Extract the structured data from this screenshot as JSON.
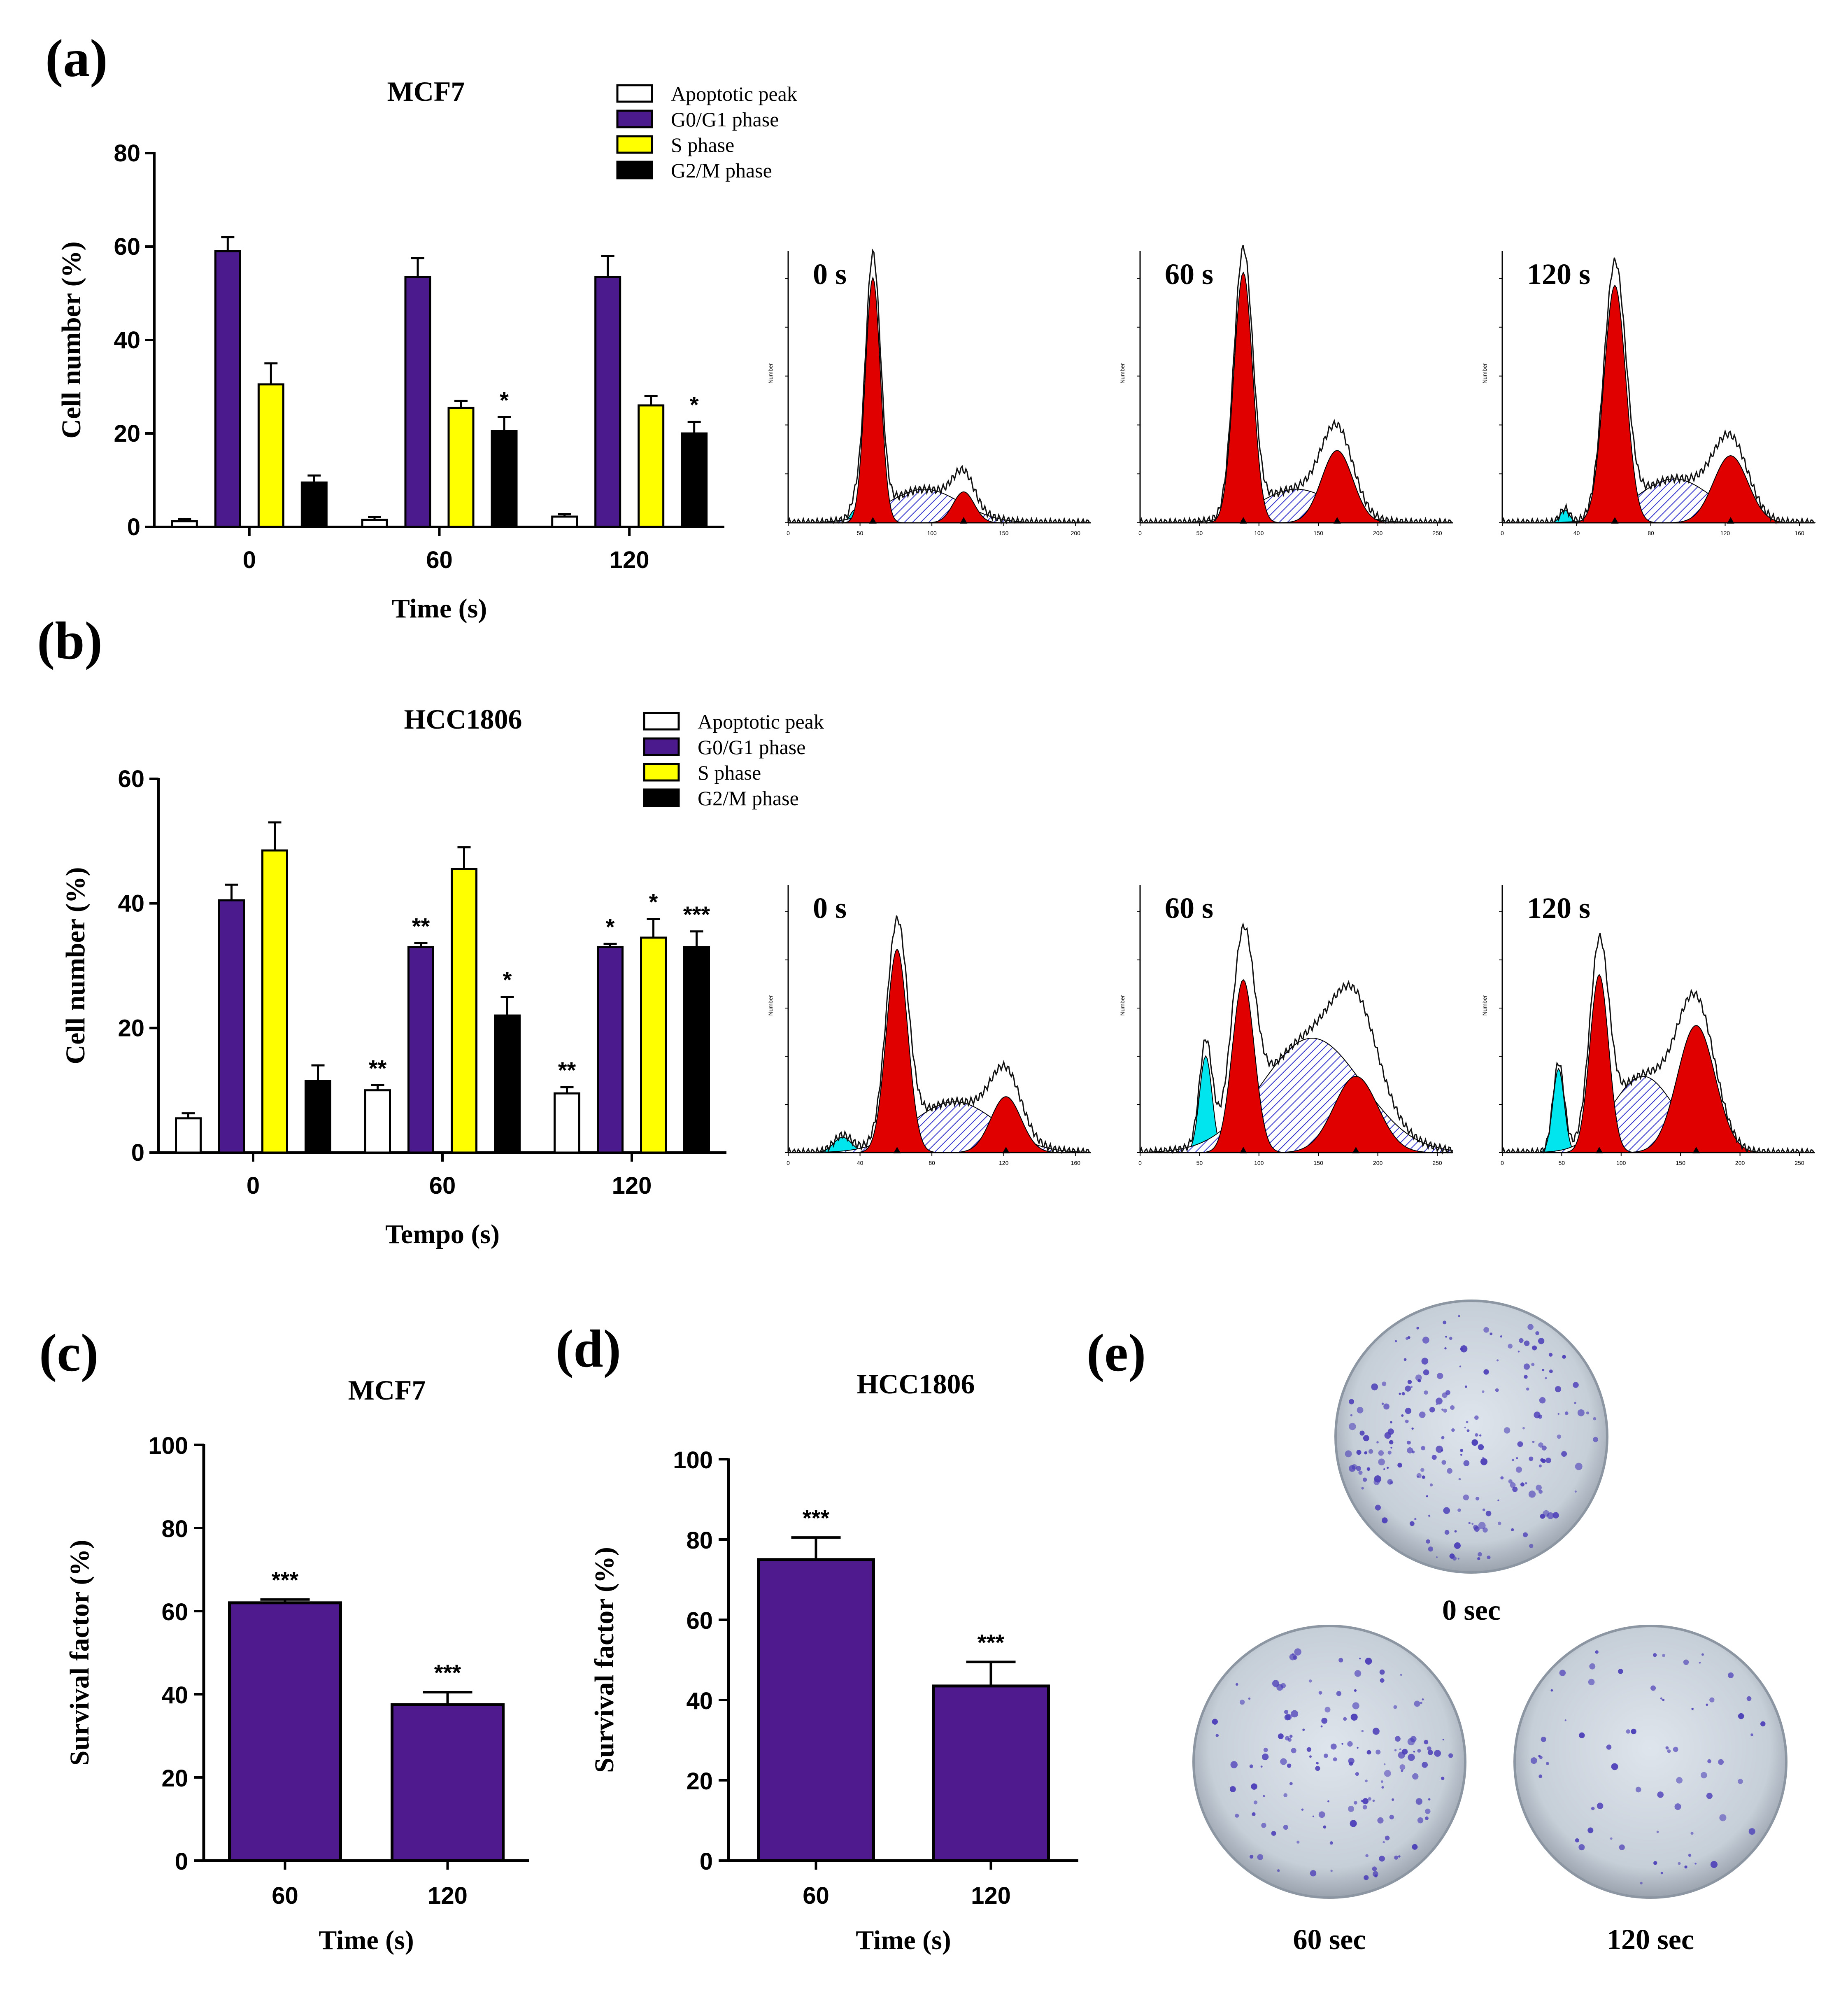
{
  "colors": {
    "apoptotic": "#ffffff",
    "g0g1": "#4b1a8c",
    "s": "#ffff00",
    "g2m": "#000000",
    "survival": "#4e1a8e",
    "hist_red": "#e00000",
    "hist_cyan": "#00e5ee",
    "hist_blue": "#2a2acc",
    "plate_bg": "#cfd6df",
    "colony": "#4a3cb8"
  },
  "panels": {
    "a": {
      "letter": "(a)"
    },
    "b": {
      "letter": "(b)"
    },
    "c": {
      "letter": "(c)"
    },
    "d": {
      "letter": "(d)"
    },
    "e": {
      "letter": "(e)"
    }
  },
  "legend_items": [
    "Apoptotic peak",
    "G0/G1 phase",
    "S phase",
    "G2/M phase"
  ],
  "chart_data": [
    {
      "id": "a",
      "type": "bar",
      "title": "MCF7",
      "xlabel": "Time (s)",
      "ylabel": "Cell number (%)",
      "ylim": [
        0,
        80
      ],
      "yticks": [
        0,
        20,
        40,
        60,
        80
      ],
      "categories": [
        "0",
        "60",
        "120"
      ],
      "series": [
        {
          "name": "Apoptotic peak",
          "values": [
            1.2,
            1.5,
            2.2
          ],
          "errors": [
            0.5,
            0.6,
            0.5
          ],
          "sig": [
            "",
            "",
            ""
          ]
        },
        {
          "name": "G0/G1 phase",
          "values": [
            59,
            53.5,
            53.5
          ],
          "errors": [
            3,
            4,
            4.5
          ],
          "sig": [
            "",
            "",
            ""
          ]
        },
        {
          "name": "S phase",
          "values": [
            30.5,
            25.5,
            26
          ],
          "errors": [
            4.5,
            1.5,
            2
          ],
          "sig": [
            "",
            "",
            ""
          ]
        },
        {
          "name": "G2/M phase",
          "values": [
            9.5,
            20.5,
            20
          ],
          "errors": [
            1.5,
            3,
            2.5
          ],
          "sig": [
            "",
            "*",
            "*"
          ]
        }
      ]
    },
    {
      "id": "b",
      "type": "bar",
      "title": "HCC1806",
      "xlabel": "Tempo (s)",
      "ylabel": "Cell number (%)",
      "ylim": [
        0,
        60
      ],
      "yticks": [
        0,
        20,
        40,
        60
      ],
      "categories": [
        "0",
        "60",
        "120"
      ],
      "series": [
        {
          "name": "Apoptotic peak",
          "values": [
            5.5,
            10,
            9.5
          ],
          "errors": [
            0.8,
            0.8,
            1
          ],
          "sig": [
            "",
            "**",
            "**"
          ]
        },
        {
          "name": "G0/G1 phase",
          "values": [
            40.5,
            33,
            33
          ],
          "errors": [
            2.5,
            0.6,
            0.5
          ],
          "sig": [
            "",
            "**",
            "*"
          ]
        },
        {
          "name": "S phase",
          "values": [
            48.5,
            45.5,
            34.5
          ],
          "errors": [
            4.5,
            3.5,
            3
          ],
          "sig": [
            "",
            "",
            "*"
          ]
        },
        {
          "name": "G2/M phase",
          "values": [
            11.5,
            22,
            33
          ],
          "errors": [
            2.5,
            3,
            2.5
          ],
          "sig": [
            "",
            "*",
            "***"
          ]
        }
      ]
    },
    {
      "id": "c",
      "type": "bar",
      "title": "MCF7",
      "xlabel": "Time (s)",
      "ylabel": "Survival factor (%)",
      "ylim": [
        0,
        100
      ],
      "yticks": [
        0,
        20,
        40,
        60,
        80,
        100
      ],
      "categories": [
        "60",
        "120"
      ],
      "series": [
        {
          "name": "Survival factor",
          "values": [
            62,
            37.5
          ],
          "errors": [
            0.8,
            3
          ],
          "sig": [
            "***",
            "***"
          ]
        }
      ]
    },
    {
      "id": "d",
      "type": "bar",
      "title": "HCC1806",
      "xlabel": "Time (s)",
      "ylabel": "Survival factor (%)",
      "ylim": [
        0,
        100
      ],
      "yticks": [
        0,
        20,
        40,
        60,
        80,
        100
      ],
      "categories": [
        "60",
        "120"
      ],
      "series": [
        {
          "name": "Survival factor",
          "values": [
            75,
            43.5
          ],
          "errors": [
            5.5,
            6
          ],
          "sig": [
            "***",
            "***"
          ]
        }
      ]
    }
  ],
  "histograms": {
    "a": [
      {
        "label": "0 s",
        "xticks": [
          "0",
          "50",
          "100",
          "150",
          "200"
        ],
        "ylabel": "Number"
      },
      {
        "label": "60 s",
        "xticks": [
          "0",
          "50",
          "100",
          "150",
          "200",
          "250"
        ],
        "ylabel": "Number"
      },
      {
        "label": "120 s",
        "xticks": [
          "0",
          "40",
          "80",
          "120",
          "160"
        ],
        "ylabel": "Number"
      }
    ],
    "b": [
      {
        "label": "0 s",
        "xticks": [
          "0",
          "40",
          "80",
          "120",
          "160"
        ],
        "ylabel": "Number"
      },
      {
        "label": "60 s",
        "xticks": [
          "0",
          "50",
          "100",
          "150",
          "200",
          "250"
        ],
        "ylabel": "Number"
      },
      {
        "label": "120 s",
        "xticks": [
          "0",
          "50",
          "100",
          "150",
          "200",
          "250"
        ],
        "ylabel": "Number"
      }
    ]
  },
  "plates": [
    {
      "label": "0 sec",
      "density": 0.8
    },
    {
      "label": "60 sec",
      "density": 0.55
    },
    {
      "label": "120 sec",
      "density": 0.25
    }
  ]
}
